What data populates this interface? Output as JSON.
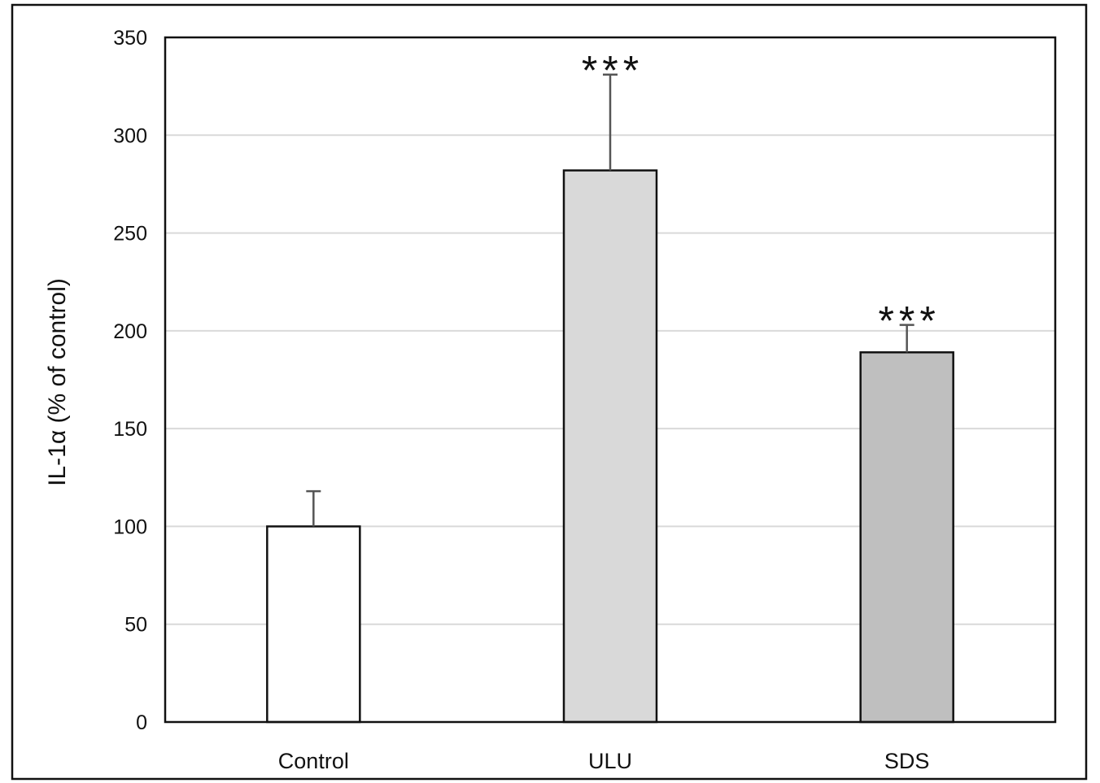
{
  "chart_data": {
    "type": "bar",
    "title": "",
    "xlabel": "",
    "ylabel": "IL-1α (% of control)",
    "categories": [
      "Control",
      "ULU",
      "SDS"
    ],
    "values": [
      100,
      282,
      189
    ],
    "error_bars": [
      18,
      49,
      14
    ],
    "significance": [
      "",
      "***",
      "***"
    ],
    "ylim": [
      0,
      350
    ],
    "yticks": [
      0,
      50,
      100,
      150,
      200,
      250,
      300,
      350
    ],
    "grid": true,
    "bar_colors": [
      "#ffffff",
      "#d9d9d9",
      "#bfbfbf"
    ],
    "bar_edge_color": "#111111",
    "error_bar_color": "#555555",
    "gridline_color": "#d9d9d9"
  }
}
